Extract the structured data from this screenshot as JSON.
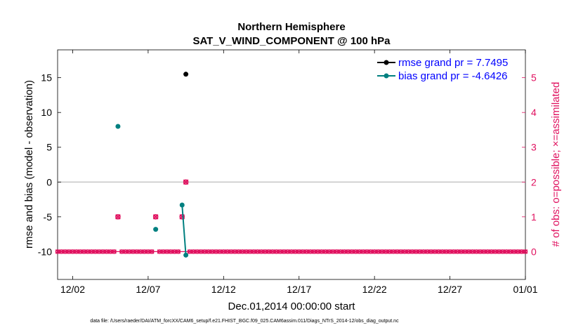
{
  "chart_data": {
    "type": "line",
    "title": "Northern Hemisphere",
    "subtitle": "SAT_V_WIND_COMPONENT @ 100 hPa",
    "xlabel": "Dec.01,2014 00:00:00 start",
    "ylabel": "rmse and bias (model - observation)",
    "y2label": "# of obs: o=possible; ×=assimilated",
    "xlim": [
      1,
      32
    ],
    "ylim": [
      -14,
      19
    ],
    "y2lim": [
      -0.8,
      5.8
    ],
    "x_tick_values": [
      2,
      7,
      12,
      17,
      22,
      27,
      32
    ],
    "x_tick_labels": [
      "12/02",
      "12/07",
      "12/12",
      "12/17",
      "12/22",
      "12/27",
      "01/01"
    ],
    "y_tick_values": [
      -10,
      -5,
      0,
      5,
      10,
      15
    ],
    "y_tick_labels": [
      "-10",
      "-5",
      "0",
      "5",
      "10",
      "15"
    ],
    "y2_tick_values": [
      0,
      1,
      2,
      3,
      4,
      5
    ],
    "y2_tick_labels": [
      "0",
      "1",
      "2",
      "3",
      "4",
      "5"
    ],
    "zero_line": 0,
    "series": [
      {
        "name": "rmse grand pr = 7.7495",
        "color": "#000000",
        "axis": "left",
        "points": [
          [
            9.5,
            15.5
          ]
        ]
      },
      {
        "name": "bias grand pr = -4.6426",
        "color": "#008080",
        "axis": "left",
        "points": [
          [
            5,
            8.0
          ],
          [
            7.5,
            -6.8
          ],
          [
            9.25,
            -3.3
          ],
          [
            9.5,
            -10.5
          ]
        ],
        "segments": [
          [
            9.25,
            9.5
          ]
        ]
      },
      {
        "name": "obs possible",
        "color": "#e0115f",
        "axis": "right",
        "marker": "o",
        "points": [
          [
            5,
            1
          ],
          [
            7.5,
            1
          ],
          [
            9.25,
            1
          ],
          [
            9.5,
            2
          ]
        ]
      },
      {
        "name": "obs assimilated",
        "color": "#e0115f",
        "axis": "right",
        "marker": "x",
        "points": [
          [
            5,
            1
          ],
          [
            7.5,
            1
          ],
          [
            9.25,
            1
          ],
          [
            9.5,
            2
          ]
        ]
      }
    ],
    "legend": "top-right",
    "footer": "data file: /Users/raeder/DAI/ATM_forcXX/CAM6_setup/f.e21.FHIST_BGC.f09_025.CAM6assim.011/Diags_NTrS_2014-12/obs_diag_output.nc",
    "colors": {
      "left_axis": "#000000",
      "right_axis": "#e0115f",
      "legend_text": "#0000ff",
      "zero_line": "#bbbbbb"
    }
  }
}
